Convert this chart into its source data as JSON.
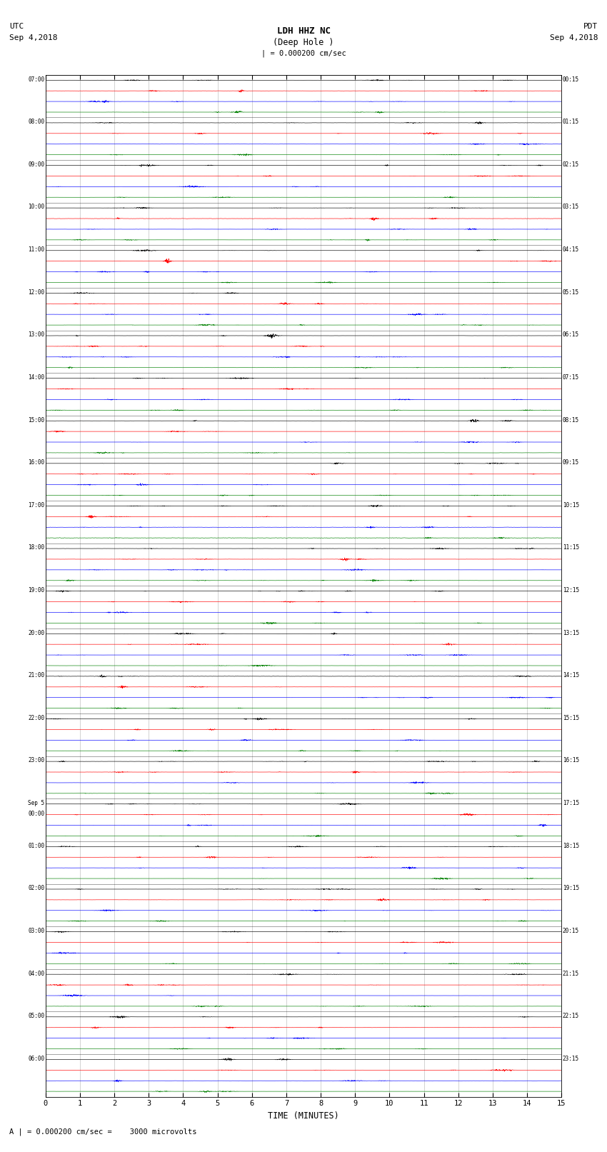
{
  "title_center": "LDH HHZ NC",
  "title_sub": "(Deep Hole )",
  "title_left_top": "UTC",
  "title_left_bot": "Sep 4,2018",
  "title_right_top": "PDT",
  "title_right_bot": "Sep 4,2018",
  "scale_label": "| = 0.000200 cm/sec",
  "bottom_label": "A | = 0.000200 cm/sec =    3000 microvolts",
  "xlabel": "TIME (MINUTES)",
  "time_min": 0,
  "time_max": 15,
  "xticks": [
    0,
    1,
    2,
    3,
    4,
    5,
    6,
    7,
    8,
    9,
    10,
    11,
    12,
    13,
    14,
    15
  ],
  "n_rows": 24,
  "traces_per_row": 4,
  "utc_labels": [
    "07:00",
    "08:00",
    "09:00",
    "10:00",
    "11:00",
    "12:00",
    "13:00",
    "14:00",
    "15:00",
    "16:00",
    "17:00",
    "18:00",
    "19:00",
    "20:00",
    "21:00",
    "22:00",
    "23:00",
    "Sep 5\n00:00",
    "01:00",
    "02:00",
    "03:00",
    "04:00",
    "05:00",
    "06:00"
  ],
  "pdt_labels": [
    "00:15",
    "01:15",
    "02:15",
    "03:15",
    "04:15",
    "05:15",
    "06:15",
    "07:15",
    "08:15",
    "09:15",
    "10:15",
    "11:15",
    "12:15",
    "13:15",
    "14:15",
    "15:15",
    "16:15",
    "17:15",
    "18:15",
    "19:15",
    "20:15",
    "21:15",
    "22:15",
    "23:15"
  ],
  "bg_color": "white",
  "trace_color_order": [
    "black",
    "red",
    "blue",
    "green"
  ],
  "trace_amplitude": 0.06,
  "noise_level": 0.012,
  "seed": 42
}
